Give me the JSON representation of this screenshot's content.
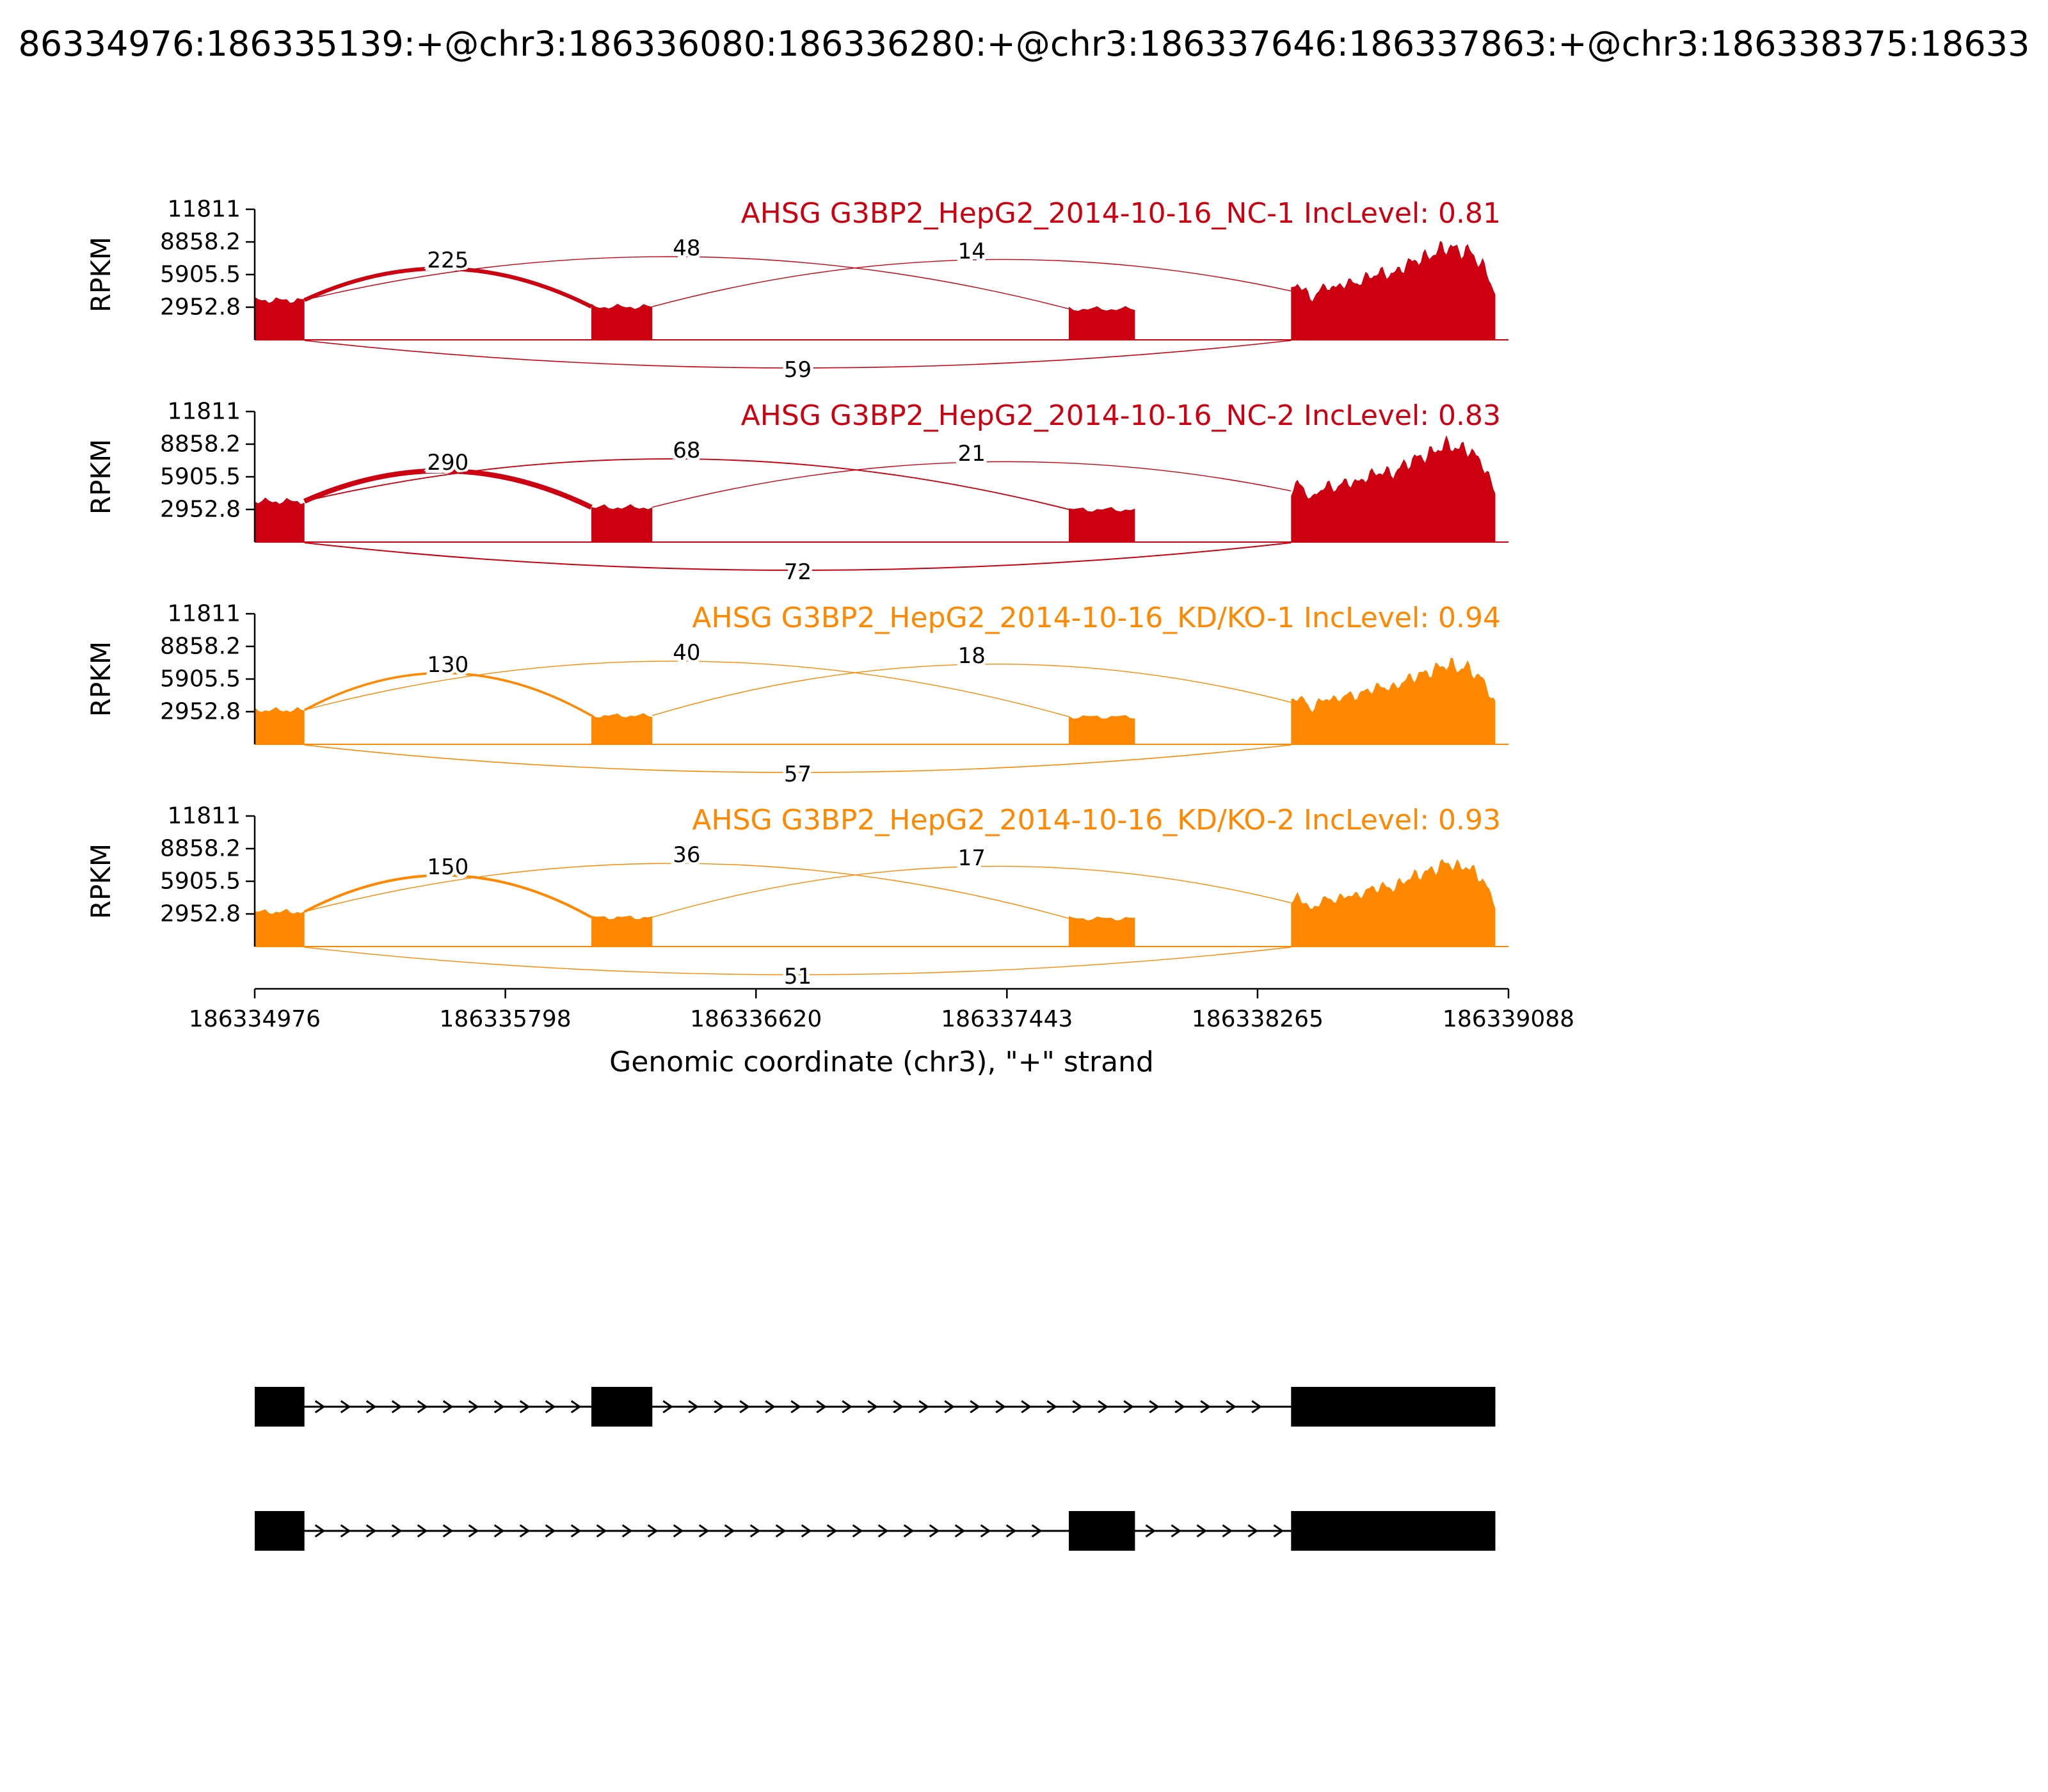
{
  "title": "86334976:186335139:+@chr3:186336080:186336280:+@chr3:186337646:186337863:+@chr3:186338375:18633",
  "chart_data": {
    "type": "sashimi",
    "gene": "AHSG",
    "region": {
      "chromosome": "chr3",
      "strand": "+",
      "xlim": [
        186334976,
        186339088
      ]
    },
    "xlabel": "Genomic coordinate (chr3), \"+\" strand",
    "x_ticks": [
      186334976,
      186335798,
      186336620,
      186337443,
      186338265,
      186339088
    ],
    "rpkm_axis": {
      "label": "RPKM",
      "max": 11811,
      "ticks": [
        "11811",
        "8858.2",
        "5905.5",
        "2952.8"
      ]
    },
    "exons": {
      "upstream": [
        186334976,
        186335139
      ],
      "first": [
        186336080,
        186336280
      ],
      "second": [
        186337646,
        186337863
      ],
      "downstream": [
        186338375,
        186339045
      ]
    },
    "tracks": [
      {
        "label": "AHSG G3BP2_HepG2_2014-10-16_NC-1 IncLevel: 0.81",
        "sample": "NC-1",
        "inc_level": 0.81,
        "color": "#CC0011",
        "junctions": [
          {
            "from": 186335139,
            "to": 186336080,
            "count": 225,
            "side": "above"
          },
          {
            "from": 186335139,
            "to": 186337646,
            "count": 48,
            "side": "above"
          },
          {
            "from": 186336280,
            "to": 186338375,
            "count": 14,
            "side": "above"
          },
          {
            "from": 186335139,
            "to": 186338375,
            "count": 59,
            "side": "below"
          }
        ],
        "coverage_rpkm": {
          "upstream": 3600,
          "first": 3000,
          "second": 2800,
          "downstream_peak": 8500
        }
      },
      {
        "label": "AHSG G3BP2_HepG2_2014-10-16_NC-2 IncLevel: 0.83",
        "sample": "NC-2",
        "inc_level": 0.83,
        "color": "#CC0011",
        "junctions": [
          {
            "from": 186335139,
            "to": 186336080,
            "count": 290,
            "side": "above"
          },
          {
            "from": 186335139,
            "to": 186337646,
            "count": 68,
            "side": "above"
          },
          {
            "from": 186336280,
            "to": 186338375,
            "count": 21,
            "side": "above"
          },
          {
            "from": 186335139,
            "to": 186338375,
            "count": 72,
            "side": "below"
          }
        ],
        "coverage_rpkm": {
          "upstream": 3700,
          "first": 3150,
          "second": 2950,
          "downstream_peak": 8900
        }
      },
      {
        "label": "AHSG G3BP2_HepG2_2014-10-16_KD/KO-1 IncLevel: 0.94",
        "sample": "KD/KO-1",
        "inc_level": 0.94,
        "color": "#FF8800",
        "junctions": [
          {
            "from": 186335139,
            "to": 186336080,
            "count": 130,
            "side": "above"
          },
          {
            "from": 186335139,
            "to": 186337646,
            "count": 40,
            "side": "above"
          },
          {
            "from": 186336280,
            "to": 186338375,
            "count": 18,
            "side": "above"
          },
          {
            "from": 186335139,
            "to": 186338375,
            "count": 57,
            "side": "below"
          }
        ],
        "coverage_rpkm": {
          "upstream": 3100,
          "first": 2600,
          "second": 2500,
          "downstream_peak": 7300
        }
      },
      {
        "label": "AHSG G3BP2_HepG2_2014-10-16_KD/KO-2 IncLevel: 0.93",
        "sample": "KD/KO-2",
        "inc_level": 0.93,
        "color": "#FF8800",
        "junctions": [
          {
            "from": 186335139,
            "to": 186336080,
            "count": 150,
            "side": "above"
          },
          {
            "from": 186335139,
            "to": 186337646,
            "count": 36,
            "side": "above"
          },
          {
            "from": 186336280,
            "to": 186338375,
            "count": 17,
            "side": "above"
          },
          {
            "from": 186335139,
            "to": 186338375,
            "count": 51,
            "side": "below"
          }
        ],
        "coverage_rpkm": {
          "upstream": 3150,
          "first": 2650,
          "second": 2550,
          "downstream_peak": 7600
        }
      }
    ],
    "isoforms": [
      {
        "exons": [
          [
            186334976,
            186335139
          ],
          [
            186336080,
            186336280
          ],
          [
            186338375,
            186339045
          ]
        ]
      },
      {
        "exons": [
          [
            186334976,
            186335139
          ],
          [
            186337646,
            186337863
          ],
          [
            186338375,
            186339045
          ]
        ]
      }
    ]
  }
}
